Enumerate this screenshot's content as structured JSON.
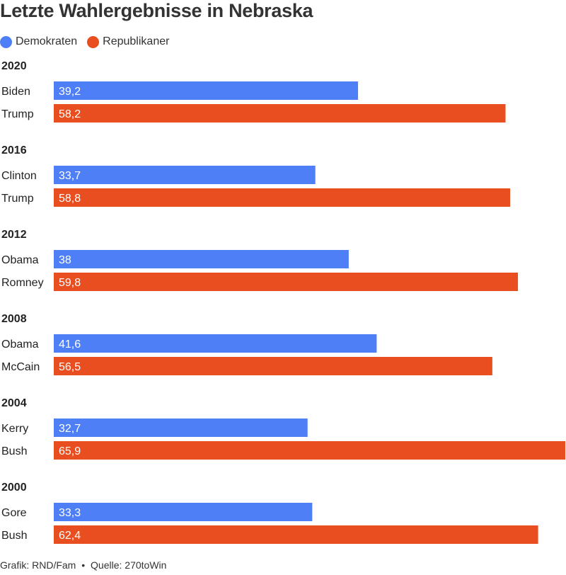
{
  "title": "Letzte Wahlergebnisse in Nebraska",
  "legend": [
    {
      "label": "Demokraten",
      "color": "#4f7ff7"
    },
    {
      "label": "Republikaner",
      "color": "#e84e1f"
    }
  ],
  "source": {
    "credit": "Grafik: RND/Fam",
    "separator": "•",
    "origin": "Quelle: 270toWin"
  },
  "chart_data": {
    "type": "bar",
    "orientation": "horizontal",
    "title": "Letzte Wahlergebnisse in Nebraska",
    "xlim": [
      0,
      65.9
    ],
    "grid": false,
    "legend_position": "top-left",
    "series_colors": {
      "Demokraten": "#4f7ff7",
      "Republikaner": "#e84e1f"
    },
    "groups": [
      {
        "year": "2020",
        "bars": [
          {
            "candidate": "Biden",
            "party": "Demokraten",
            "value": 39.2,
            "label": "39,2"
          },
          {
            "candidate": "Trump",
            "party": "Republikaner",
            "value": 58.2,
            "label": "58,2"
          }
        ]
      },
      {
        "year": "2016",
        "bars": [
          {
            "candidate": "Clinton",
            "party": "Demokraten",
            "value": 33.7,
            "label": "33,7"
          },
          {
            "candidate": "Trump",
            "party": "Republikaner",
            "value": 58.8,
            "label": "58,8"
          }
        ]
      },
      {
        "year": "2012",
        "bars": [
          {
            "candidate": "Obama",
            "party": "Demokraten",
            "value": 38,
            "label": "38"
          },
          {
            "candidate": "Romney",
            "party": "Republikaner",
            "value": 59.8,
            "label": "59,8"
          }
        ]
      },
      {
        "year": "2008",
        "bars": [
          {
            "candidate": "Obama",
            "party": "Demokraten",
            "value": 41.6,
            "label": "41,6"
          },
          {
            "candidate": "McCain",
            "party": "Republikaner",
            "value": 56.5,
            "label": "56,5"
          }
        ]
      },
      {
        "year": "2004",
        "bars": [
          {
            "candidate": "Kerry",
            "party": "Demokraten",
            "value": 32.7,
            "label": "32,7"
          },
          {
            "candidate": "Bush",
            "party": "Republikaner",
            "value": 65.9,
            "label": "65,9"
          }
        ]
      },
      {
        "year": "2000",
        "bars": [
          {
            "candidate": "Gore",
            "party": "Demokraten",
            "value": 33.3,
            "label": "33,3"
          },
          {
            "candidate": "Bush",
            "party": "Republikaner",
            "value": 62.4,
            "label": "62,4"
          }
        ]
      }
    ]
  }
}
